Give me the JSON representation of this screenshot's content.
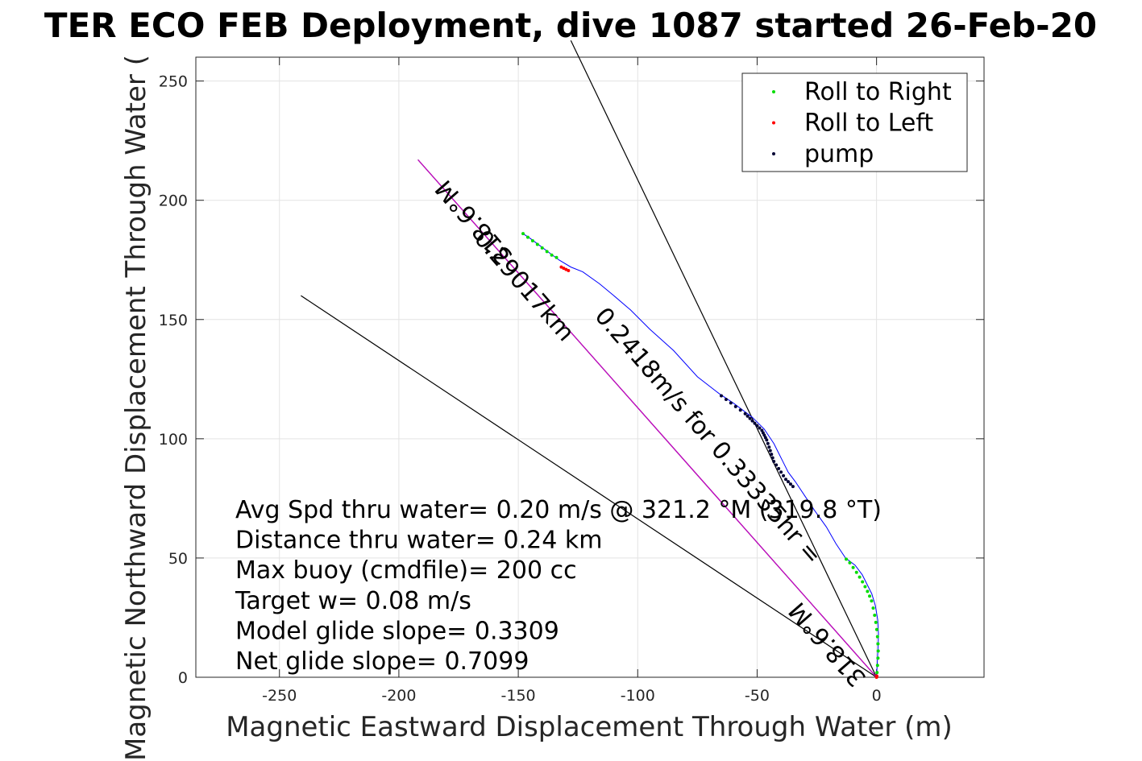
{
  "chart_data": {
    "type": "scatter",
    "title": "TER ECO FEB Deployment, dive 1087 started 26-Feb-20",
    "xlabel": "Magnetic Eastward Displacement Through Water (m)",
    "ylabel": "Magnetic Northward Displacement Through Water (",
    "xlim": [
      -285,
      45
    ],
    "ylim": [
      0,
      260
    ],
    "xticks": [
      -250,
      -200,
      -150,
      -100,
      -50,
      0
    ],
    "xtick_labels": [
      "-250",
      "-200",
      "-150",
      "-100",
      "-50",
      "0"
    ],
    "yticks": [
      0,
      50,
      100,
      150,
      200,
      250
    ],
    "ytick_labels": [
      "0",
      "50",
      "100",
      "150",
      "200",
      "250"
    ],
    "grid": true,
    "legend_position": "top-right",
    "legend": [
      {
        "label": "Roll to Right",
        "color": "#00dd00"
      },
      {
        "label": "Roll to Left",
        "color": "#ff0000"
      },
      {
        "label": "pump",
        "color": "#000033"
      }
    ],
    "path": {
      "color": "#0000ff",
      "x": [
        0,
        0.3,
        0.6,
        0.8,
        0.5,
        -0.5,
        -2,
        -4,
        -6,
        -9,
        -13,
        -17,
        -21,
        -26,
        -30,
        -34,
        -37,
        -39,
        -41,
        -43,
        -45,
        -47,
        -49,
        -52,
        -56,
        -60,
        -66,
        -75,
        -85,
        -95,
        -103,
        -110,
        -116,
        -123,
        -128,
        -133,
        -137,
        -141,
        -145,
        -148
      ],
      "y": [
        0,
        6,
        12,
        18,
        24,
        30,
        35,
        39,
        43,
        47,
        50,
        56,
        63,
        70,
        76,
        82,
        86,
        90,
        94,
        98,
        101,
        104,
        106,
        109,
        112,
        115,
        119,
        126,
        137,
        146,
        154,
        160,
        165,
        170,
        172,
        175,
        178,
        181,
        184,
        186
      ]
    },
    "series": [
      {
        "name": "Roll to Right",
        "color": "#00dd00",
        "x": [
          0.2,
          0.4,
          0.6,
          0.7,
          0.6,
          0.4,
          0.1,
          -0.3,
          -0.8,
          -1.4,
          -2.1,
          -2.9,
          -3.8,
          -4.8,
          -5.9,
          -7.1,
          -8.4,
          -9.8,
          -11.2,
          -12.7,
          -134,
          -136,
          -138,
          -140,
          -142,
          -144,
          -146,
          -148
        ],
        "y": [
          2,
          5,
          8,
          11,
          14,
          17,
          20,
          23,
          26,
          29,
          32,
          34,
          36,
          38,
          40,
          42,
          44,
          46,
          48,
          49.5,
          176,
          177,
          178.5,
          180,
          181.5,
          183,
          184.5,
          186
        ]
      },
      {
        "name": "Roll to Left",
        "color": "#ff0000",
        "x": [
          0,
          0.1,
          -129,
          -130,
          -131,
          -132
        ],
        "y": [
          0,
          0.5,
          170.5,
          171,
          171.5,
          172
        ]
      },
      {
        "name": "pump",
        "color": "#000033",
        "x": [
          -65,
          -63,
          -61,
          -59,
          -57,
          -55,
          -54,
          -53,
          -52,
          -51,
          -50,
          -49,
          -48,
          -47.5,
          -47,
          -46.5,
          -46,
          -45.5,
          -45,
          -44.5,
          -44,
          -43.5,
          -43,
          -42,
          -41,
          -40,
          -39,
          -38,
          -37,
          -36,
          -35
        ],
        "y": [
          118,
          116.5,
          115,
          113.5,
          112,
          110.5,
          109.5,
          108.5,
          107.5,
          106.5,
          105.5,
          104.5,
          103.5,
          102.5,
          101.5,
          100.5,
          99.5,
          98,
          96.5,
          95,
          93.5,
          92,
          90.5,
          89,
          87.5,
          86,
          84.5,
          83,
          82,
          81,
          80
        ]
      }
    ],
    "reference_lines": [
      {
        "color": "#000000",
        "x": [
          0,
          -128
        ],
        "y": [
          0,
          267
        ]
      },
      {
        "color": "#000000",
        "x": [
          0,
          -241
        ],
        "y": [
          0,
          160
        ]
      },
      {
        "color": "#000000",
        "x": [
          0,
          -192
        ],
        "y": [
          0,
          217
        ]
      },
      {
        "color": "#cc00cc",
        "x": [
          0,
          -192
        ],
        "y": [
          0,
          217
        ]
      }
    ],
    "track_labels": [
      {
        "text": "318.6°M",
        "x": -166,
        "y": 193,
        "angle": 229
      },
      {
        "text": "0.29017km",
        "x": -150,
        "y": 162,
        "angle": 49
      },
      {
        "text": "0.2418m/s for 0.33335hr =",
        "x": -73,
        "y": 99,
        "angle": 49
      },
      {
        "text": "318.6°M",
        "x": -18,
        "y": 16,
        "angle": 229
      }
    ],
    "annotations": [
      "Avg Spd thru water=  0.20 m/s @ 321.2 °M (319.8 °T)",
      "Distance thru water=  0.24 km",
      "Max buoy (cmdfile)= 200 cc",
      "Target w= 0.08 m/s",
      "Model glide slope= 0.3309",
      "Net glide slope= 0.7099"
    ]
  }
}
